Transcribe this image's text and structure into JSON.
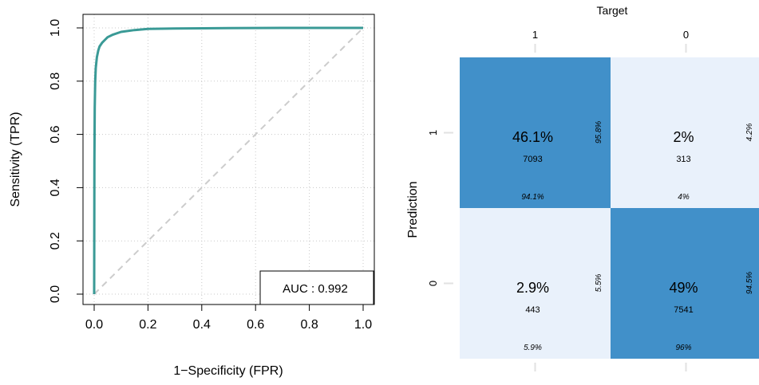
{
  "chart_data": [
    {
      "type": "line",
      "title": "",
      "xlabel": "1−Specificity (FPR)",
      "ylabel": "Sensitivity (TPR)",
      "xlim": [
        0,
        1
      ],
      "ylim": [
        0,
        1
      ],
      "x_ticks": [
        "0.0",
        "0.2",
        "0.4",
        "0.6",
        "0.8",
        "1.0"
      ],
      "y_ticks": [
        "0.0",
        "0.2",
        "0.4",
        "0.6",
        "0.8",
        "1.0"
      ],
      "grid": true,
      "series": [
        {
          "name": "",
          "color": "#3a9a96",
          "x": [
            0,
            0.001,
            0.002,
            0.004,
            0.006,
            0.01,
            0.015,
            0.02,
            0.03,
            0.04,
            0.05,
            0.07,
            0.1,
            0.15,
            0.2,
            0.3,
            0.5,
            0.7,
            1.0
          ],
          "y": [
            0,
            0.5,
            0.7,
            0.8,
            0.85,
            0.89,
            0.915,
            0.93,
            0.945,
            0.955,
            0.965,
            0.975,
            0.985,
            0.992,
            0.996,
            0.998,
            0.999,
            1.0,
            1.0
          ]
        },
        {
          "name": "",
          "color": "#cccccc",
          "dashed": true,
          "x": [
            0,
            1
          ],
          "y": [
            0,
            1
          ]
        }
      ],
      "annotation": "AUC : 0.992",
      "annotation_position": "bottom-right"
    },
    {
      "type": "heatmap",
      "title": "",
      "xlabel": "Target",
      "ylabel": "Prediction",
      "x_categories": [
        "1",
        "0"
      ],
      "y_categories": [
        "1",
        "0"
      ],
      "colors": {
        "high": "#4190c9",
        "low": "#e9f1fb"
      },
      "cells": [
        {
          "row": 0,
          "col": 0,
          "percent": "46.1%",
          "count": "7093",
          "col_pct": "94.1%",
          "row_pct": "95.8%",
          "level": "high"
        },
        {
          "row": 0,
          "col": 1,
          "percent": "2%",
          "count": "313",
          "col_pct": "4%",
          "row_pct": "4.2%",
          "level": "low"
        },
        {
          "row": 1,
          "col": 0,
          "percent": "2.9%",
          "count": "443",
          "col_pct": "5.9%",
          "row_pct": "5.5%",
          "level": "low"
        },
        {
          "row": 1,
          "col": 1,
          "percent": "49%",
          "count": "7541",
          "col_pct": "96%",
          "row_pct": "94.5%",
          "level": "high"
        }
      ]
    }
  ]
}
